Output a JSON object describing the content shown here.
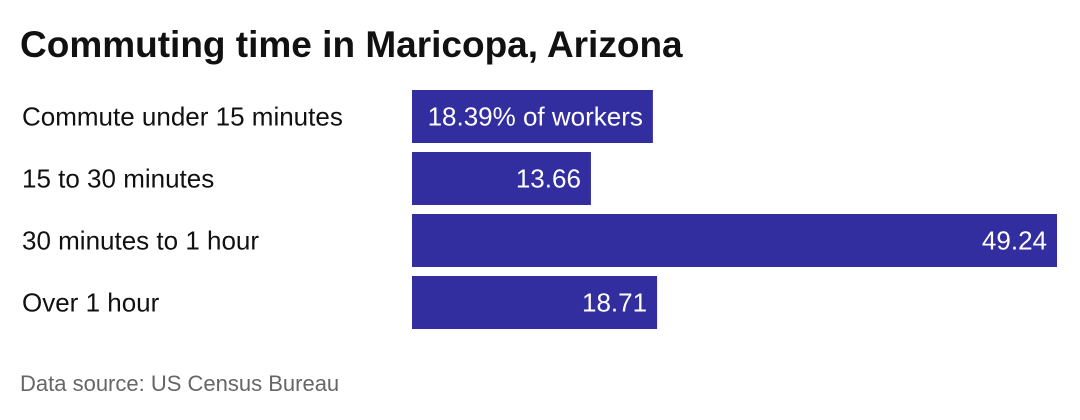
{
  "chart_data": {
    "type": "bar",
    "orientation": "horizontal",
    "title": "Commuting time in Maricopa, Arizona",
    "categories": [
      "Commute under 15 minutes",
      "15 to 30 minutes",
      "30 minutes to 1 hour",
      "Over 1 hour"
    ],
    "values": [
      18.39,
      13.66,
      49.24,
      18.71
    ],
    "value_labels": [
      "18.39% of workers",
      "13.66",
      "49.24",
      "18.71"
    ],
    "color": "#332ea0",
    "source": "Data source: US Census Bureau"
  }
}
